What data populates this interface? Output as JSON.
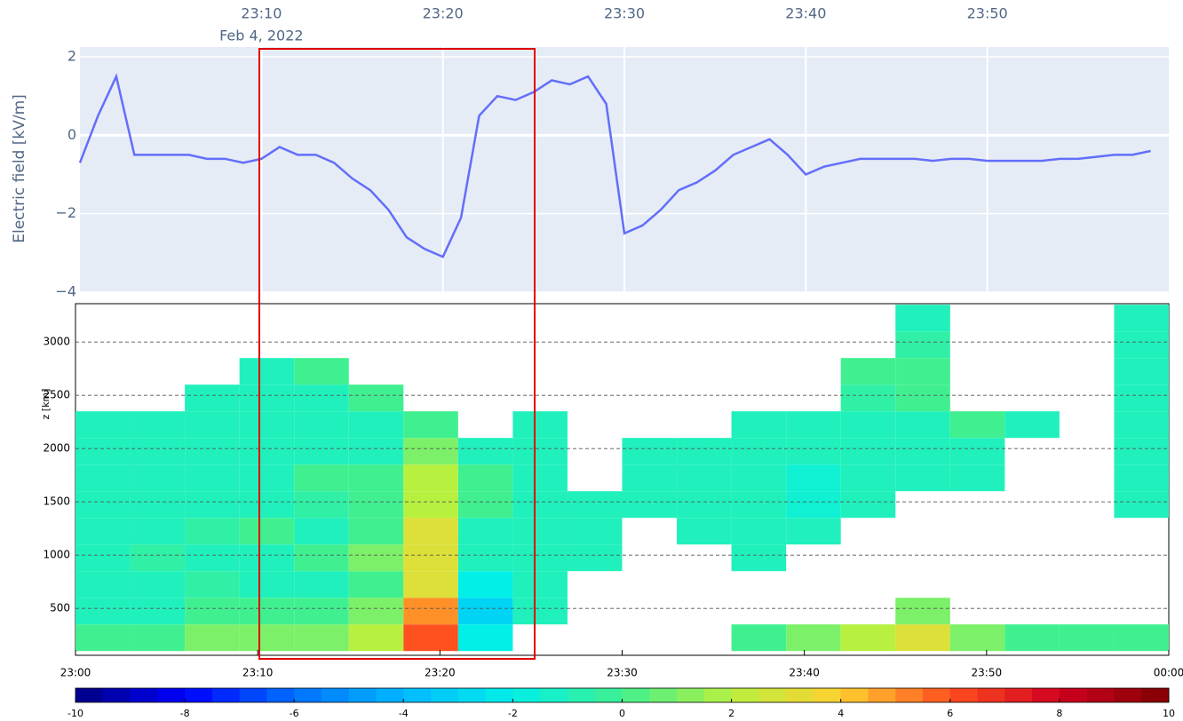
{
  "chart_data": [
    {
      "type": "line",
      "y_label": "Electric field [kV/m]",
      "date_label": "Feb 4, 2022",
      "x": [
        "23:00",
        "23:01",
        "23:02",
        "23:03",
        "23:04",
        "23:05",
        "23:06",
        "23:07",
        "23:08",
        "23:09",
        "23:10",
        "23:11",
        "23:12",
        "23:13",
        "23:14",
        "23:15",
        "23:16",
        "23:17",
        "23:18",
        "23:19",
        "23:20",
        "23:21",
        "23:22",
        "23:23",
        "23:24",
        "23:25",
        "23:26",
        "23:27",
        "23:28",
        "23:29",
        "23:30",
        "23:31",
        "23:32",
        "23:33",
        "23:34",
        "23:35",
        "23:36",
        "23:37",
        "23:38",
        "23:39",
        "23:40",
        "23:41",
        "23:42",
        "23:43",
        "23:44",
        "23:45",
        "23:46",
        "23:47",
        "23:48",
        "23:49",
        "23:50",
        "23:51",
        "23:52",
        "23:53",
        "23:54",
        "23:55",
        "23:56",
        "23:57",
        "23:58",
        "23:59"
      ],
      "series": [
        {
          "color": "#636efa",
          "values": [
            -0.7,
            0.5,
            1.5,
            -0.5,
            -0.5,
            -0.5,
            -0.5,
            -0.6,
            -0.6,
            -0.7,
            -0.6,
            -0.3,
            -0.5,
            -0.5,
            -0.7,
            -1.1,
            -1.4,
            -1.9,
            -2.6,
            -2.9,
            -3.1,
            -2.1,
            0.5,
            1.0,
            0.9,
            1.1,
            1.4,
            1.3,
            1.5,
            0.8,
            -2.5,
            -2.3,
            -1.9,
            -1.4,
            -1.2,
            -0.9,
            -0.5,
            -0.3,
            -0.1,
            -0.5,
            -1.0,
            -0.8,
            -0.7,
            -0.6,
            -0.6,
            -0.6,
            -0.6,
            -0.65,
            -0.6,
            -0.6,
            -0.65,
            -0.65,
            -0.65,
            -0.65,
            -0.6,
            -0.6,
            -0.55,
            -0.5,
            -0.5,
            -0.4
          ]
        }
      ],
      "xlim": [
        "23:00",
        "00:00"
      ],
      "xticks": [
        "23:10",
        "23:20",
        "23:30",
        "23:40",
        "23:50"
      ],
      "ylim": [
        -4,
        2.25
      ],
      "yticks": [
        {
          "value": -4,
          "label": "−4"
        },
        {
          "value": -2,
          "label": "−2"
        },
        0,
        2
      ],
      "grid": true
    },
    {
      "type": "heatmap",
      "y_label": "z [km]",
      "x_bins": [
        "23:00",
        "23:03",
        "23:06",
        "23:09",
        "23:12",
        "23:15",
        "23:18",
        "23:21",
        "23:24",
        "23:27",
        "23:30",
        "23:33",
        "23:36",
        "23:39",
        "23:42",
        "23:45",
        "23:48",
        "23:51",
        "23:54",
        "23:57",
        "00:00"
      ],
      "z_bins": [
        100,
        350,
        600,
        850,
        1100,
        1350,
        1600,
        1850,
        2100,
        2350,
        2600,
        2850,
        3100,
        3350
      ],
      "values": [
        [
          0,
          -1,
          -1,
          -1,
          -1,
          -1,
          -1,
          -1,
          -1,
          null,
          null,
          null,
          null
        ],
        [
          0,
          -1,
          -1,
          -0.5,
          -1,
          -1,
          -1,
          -1,
          -1,
          null,
          null,
          null,
          null
        ],
        [
          1,
          0,
          -0.5,
          -1,
          -0.5,
          -1,
          -1,
          -1,
          -1,
          -1,
          null,
          null,
          null
        ],
        [
          1,
          0,
          -1,
          -1,
          0,
          -1,
          -1,
          -1,
          -1,
          -1,
          -1,
          null,
          null
        ],
        [
          1,
          0,
          -1,
          0,
          -1,
          -0.5,
          0,
          -1,
          -1,
          -1,
          0,
          null,
          null
        ],
        [
          2,
          1,
          0,
          1,
          0,
          0,
          0,
          -1,
          -1,
          0,
          null,
          null,
          null
        ],
        [
          6,
          5,
          3,
          3,
          3,
          2,
          2,
          1,
          0,
          null,
          null,
          null,
          null
        ],
        [
          -2,
          -3,
          -2,
          -1,
          -1,
          0,
          0,
          -1,
          null,
          null,
          null,
          null,
          null
        ],
        [
          null,
          -1,
          -1,
          -1,
          -1,
          -1,
          -1,
          -1,
          -1,
          null,
          null,
          null,
          null
        ],
        [
          null,
          null,
          null,
          -1,
          -1,
          -1,
          null,
          null,
          null,
          null,
          null,
          null,
          null
        ],
        [
          null,
          null,
          null,
          null,
          null,
          -1,
          -1,
          -1,
          null,
          null,
          null,
          null,
          null
        ],
        [
          null,
          null,
          null,
          null,
          -1,
          -1,
          -1,
          -1,
          null,
          null,
          null,
          null,
          null
        ],
        [
          0,
          null,
          null,
          -1,
          -1,
          -1,
          -1,
          -1,
          -1,
          null,
          null,
          null,
          null
        ],
        [
          1,
          null,
          null,
          null,
          -1,
          -1.5,
          -1.5,
          -1,
          -1,
          null,
          null,
          null,
          null
        ],
        [
          2,
          null,
          null,
          null,
          null,
          -1,
          -1,
          -1,
          -1,
          -0.5,
          0,
          null,
          null
        ],
        [
          3,
          1,
          null,
          null,
          null,
          null,
          -1,
          -1,
          -1,
          0,
          0,
          -0.5,
          -1
        ],
        [
          1,
          null,
          null,
          null,
          null,
          null,
          -1,
          -1,
          0,
          null,
          null,
          null,
          null
        ],
        [
          0,
          null,
          null,
          null,
          null,
          null,
          null,
          null,
          -1,
          null,
          null,
          null,
          null
        ],
        [
          0,
          null,
          null,
          null,
          null,
          null,
          null,
          null,
          null,
          null,
          null,
          null,
          null
        ],
        [
          0,
          null,
          null,
          null,
          null,
          -1,
          -1,
          -1,
          -1,
          -1,
          -1,
          -1,
          -1
        ]
      ],
      "xlim": [
        "23:00",
        "00:00"
      ],
      "xticks": [
        "23:00",
        "23:10",
        "23:20",
        "23:30",
        "23:40",
        "23:50",
        "00:00"
      ],
      "ylim": [
        60,
        3360
      ],
      "yticks": [
        500,
        1000,
        1500,
        2000,
        2500,
        3000
      ],
      "clim": [
        -10,
        10
      ],
      "cticks": [
        -10,
        -8,
        -6,
        -4,
        -2,
        0,
        2,
        4,
        6,
        8,
        10
      ],
      "colorscale": [
        "#000080",
        "#0000ff",
        "#0070ff",
        "#00b8ff",
        "#00f0e8",
        "#40f090",
        "#b8f040",
        "#ffd030",
        "#ff5020",
        "#d00020",
        "#800000"
      ],
      "grid": true
    }
  ]
}
